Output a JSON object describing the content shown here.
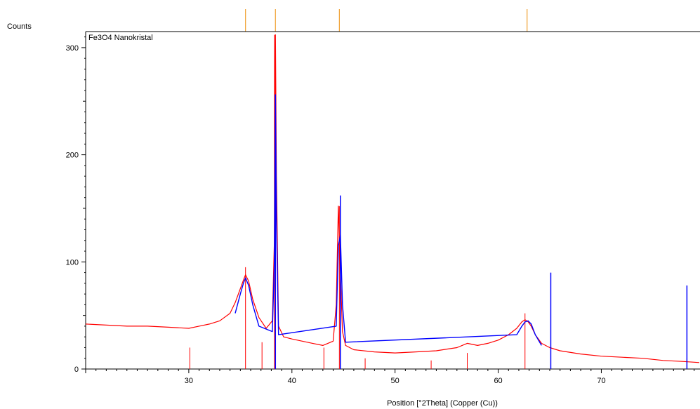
{
  "chart_data": {
    "type": "line",
    "title": "Fe3O4 Nanokristal",
    "xlabel": "Position [°2Theta] (Copper (Cu))",
    "ylabel": "Counts",
    "xlim": [
      20,
      79.5
    ],
    "ylim": [
      0,
      315
    ],
    "x_ticks": [
      30,
      40,
      50,
      60,
      70
    ],
    "y_ticks": [
      0,
      100,
      200,
      300
    ],
    "grid": false,
    "series": [
      {
        "color": "#ff0000",
        "x": [
          20,
          22,
          24,
          26,
          28,
          30,
          31,
          32,
          33,
          34,
          34.5,
          35,
          35.3,
          35.5,
          35.8,
          36.2,
          36.8,
          37.5,
          38.1,
          38.3,
          38.4,
          38.5,
          38.7,
          39.2,
          40,
          41,
          42,
          43,
          44,
          44.3,
          44.5,
          44.7,
          44.9,
          45.2,
          46,
          48,
          50,
          52,
          54,
          56,
          57,
          58,
          59,
          60,
          61,
          61.8,
          62.3,
          62.6,
          62.9,
          63.2,
          63.6,
          64.2,
          65,
          66,
          68,
          70,
          72,
          74,
          76,
          78,
          79.5
        ],
        "y": [
          42,
          41,
          40,
          40,
          39,
          38,
          40,
          42,
          45,
          52,
          62,
          75,
          83,
          88,
          82,
          65,
          48,
          38,
          45,
          120,
          312,
          180,
          40,
          30,
          28,
          26,
          24,
          22,
          26,
          60,
          152,
          90,
          35,
          22,
          18,
          16,
          15,
          16,
          17,
          20,
          24,
          22,
          24,
          27,
          32,
          38,
          44,
          46,
          44,
          40,
          32,
          24,
          20,
          17,
          14,
          12,
          11,
          10,
          8,
          7,
          6
        ]
      },
      {
        "color": "#0000ff",
        "x": [
          34.5,
          35,
          35.3,
          35.5,
          35.8,
          36.2,
          36.8,
          38.1,
          38.3,
          38.4,
          38.5,
          38.7,
          44.3,
          44.5,
          44.7,
          44.9,
          45.2,
          61.8,
          62.3,
          62.6,
          62.9,
          63.2,
          63.6,
          64.2
        ],
        "y": [
          52,
          70,
          80,
          85,
          78,
          60,
          40,
          35,
          100,
          256,
          140,
          32,
          40,
          115,
          125,
          60,
          25,
          32,
          40,
          44,
          45,
          42,
          32,
          22
        ]
      }
    ],
    "reference_lines_red": [
      {
        "x": 30.1,
        "y": 20
      },
      {
        "x": 35.5,
        "y": 95
      },
      {
        "x": 37.1,
        "y": 25
      },
      {
        "x": 38.3,
        "y": 312
      },
      {
        "x": 43.1,
        "y": 20
      },
      {
        "x": 44.6,
        "y": 152
      },
      {
        "x": 47.1,
        "y": 10
      },
      {
        "x": 53.5,
        "y": 8
      },
      {
        "x": 57.0,
        "y": 15
      },
      {
        "x": 62.6,
        "y": 52
      },
      {
        "x": 65.1,
        "y": 20
      },
      {
        "x": 78.3,
        "y": 10
      }
    ],
    "reference_lines_blue": [
      {
        "x": 38.4,
        "y": 256
      },
      {
        "x": 44.7,
        "y": 162
      },
      {
        "x": 65.1,
        "y": 90
      },
      {
        "x": 78.3,
        "y": 78
      }
    ],
    "top_markers_x": [
      35.5,
      38.4,
      44.6,
      62.8
    ]
  }
}
